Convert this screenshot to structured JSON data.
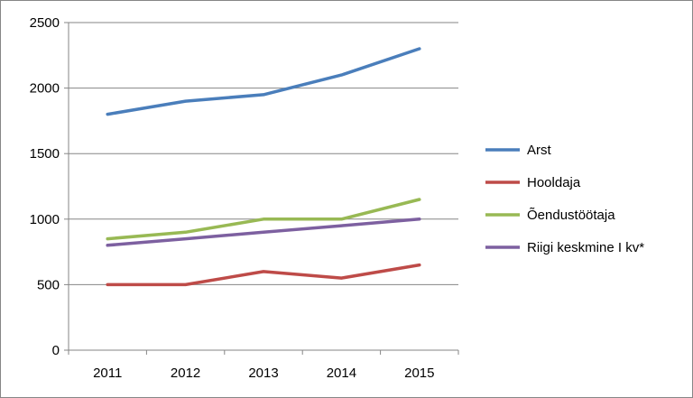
{
  "chart_data": {
    "type": "line",
    "title": "",
    "xlabel": "",
    "ylabel": "",
    "categories": [
      "2011",
      "2012",
      "2013",
      "2014",
      "2015"
    ],
    "ylim": [
      0,
      2500
    ],
    "yticks": [
      0,
      500,
      1000,
      1500,
      2000,
      2500
    ],
    "grid": true,
    "legend_position": "right",
    "series": [
      {
        "name": "Arst",
        "color": "#4a7ebb",
        "values": [
          1800,
          1900,
          1950,
          2100,
          2300
        ]
      },
      {
        "name": "Hooldaja",
        "color": "#be4b48",
        "values": [
          500,
          500,
          600,
          550,
          650
        ]
      },
      {
        "name": "Õendustöötaja",
        "color": "#98b954",
        "values": [
          850,
          900,
          1000,
          1000,
          1150
        ]
      },
      {
        "name": "Riigi keskmine I kv*",
        "color": "#7d60a0",
        "values": [
          800,
          850,
          900,
          950,
          1000
        ]
      }
    ]
  }
}
